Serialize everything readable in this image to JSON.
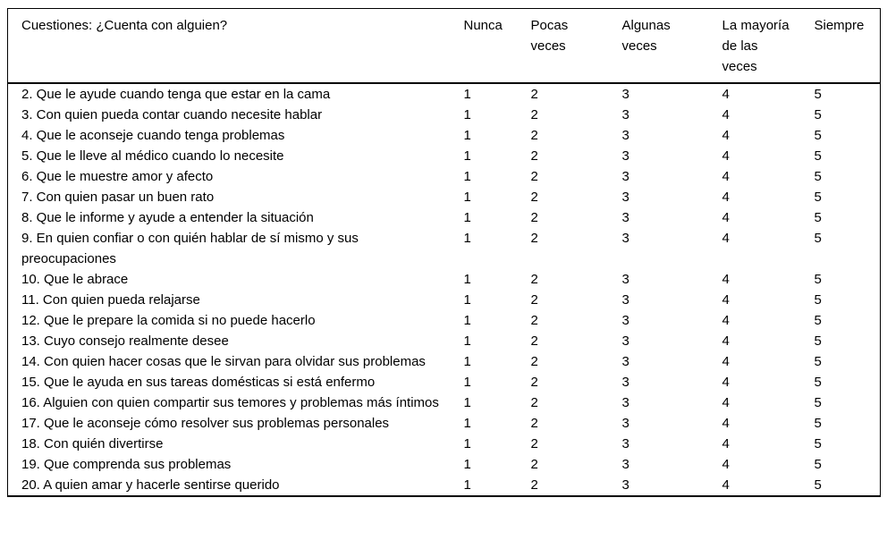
{
  "page": {
    "background_color": "#ffffff",
    "text_color": "#000000",
    "border_color": "#000000"
  },
  "table": {
    "header": {
      "question_label": "Cuestiones: ¿Cuenta con alguien?",
      "options": [
        "Nunca",
        "Pocas veces",
        "Algunas veces",
        "La mayoría de las veces",
        "Siempre"
      ]
    },
    "rows": [
      {
        "question": "2. Que le ayude cuando tenga que estar en la cama",
        "values": [
          "1",
          "2",
          "3",
          "4",
          "5"
        ]
      },
      {
        "question": "3. Con quien pueda contar cuando necesite hablar",
        "values": [
          "1",
          "2",
          "3",
          "4",
          "5"
        ]
      },
      {
        "question": "4. Que le aconseje cuando tenga problemas",
        "values": [
          "1",
          "2",
          "3",
          "4",
          "5"
        ]
      },
      {
        "question": "5. Que le lleve al médico cuando lo necesite",
        "values": [
          "1",
          "2",
          "3",
          "4",
          "5"
        ]
      },
      {
        "question": "6. Que le muestre amor y afecto",
        "values": [
          "1",
          "2",
          "3",
          "4",
          "5"
        ]
      },
      {
        "question": "7. Con quien pasar un buen rato",
        "values": [
          "1",
          "2",
          "3",
          "4",
          "5"
        ]
      },
      {
        "question": "8. Que le informe y ayude a entender la situación",
        "values": [
          "1",
          "2",
          "3",
          "4",
          "5"
        ]
      },
      {
        "question": "9. En quien confiar o con quién hablar de sí mismo y sus preocupaciones",
        "values": [
          "1",
          "2",
          "3",
          "4",
          "5"
        ]
      },
      {
        "question": "10. Que le abrace",
        "values": [
          "1",
          "2",
          "3",
          "4",
          "5"
        ]
      },
      {
        "question": "11. Con quien pueda relajarse",
        "values": [
          "1",
          "2",
          "3",
          "4",
          "5"
        ]
      },
      {
        "question": "12. Que le prepare la comida si no puede hacerlo",
        "values": [
          "1",
          "2",
          "3",
          "4",
          "5"
        ]
      },
      {
        "question": "13. Cuyo consejo realmente desee",
        "values": [
          "1",
          "2",
          "3",
          "4",
          "5"
        ]
      },
      {
        "question": "14. Con quien hacer cosas que le sirvan para olvidar sus problemas",
        "values": [
          "1",
          "2",
          "3",
          "4",
          "5"
        ]
      },
      {
        "question": "15. Que le ayuda en sus tareas domésticas si está enfermo",
        "values": [
          "1",
          "2",
          "3",
          "4",
          "5"
        ]
      },
      {
        "question": "16. Alguien con quien compartir sus temores y problemas más íntimos",
        "values": [
          "1",
          "2",
          "3",
          "4",
          "5"
        ]
      },
      {
        "question": "17. Que le aconseje cómo resolver sus problemas personales",
        "values": [
          "1",
          "2",
          "3",
          "4",
          "5"
        ]
      },
      {
        "question": "18. Con quién divertirse",
        "values": [
          "1",
          "2",
          "3",
          "4",
          "5"
        ]
      },
      {
        "question": "19. Que comprenda sus problemas",
        "values": [
          "1",
          "2",
          "3",
          "4",
          "5"
        ]
      },
      {
        "question": "20. A quien amar y hacerle sentirse querido",
        "values": [
          "1",
          "2",
          "3",
          "4",
          "5"
        ]
      }
    ]
  }
}
